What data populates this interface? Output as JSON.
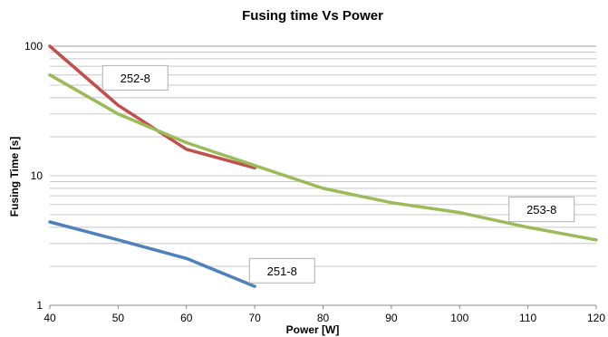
{
  "chart_data": {
    "type": "line",
    "title": "Fusing time Vs Power",
    "xlabel": "Power [W]",
    "ylabel": "Fusing Time [s]",
    "xlim": [
      40,
      120
    ],
    "ylim": [
      1,
      100
    ],
    "y_scale": "log",
    "x_ticks": [
      40,
      50,
      60,
      70,
      80,
      90,
      100,
      110,
      120
    ],
    "y_ticks": [
      1,
      10,
      100
    ],
    "grid": "horizontal",
    "legend": "none",
    "series": [
      {
        "name": "252-8",
        "color": "#c0504d",
        "x": [
          40,
          50,
          60,
          70
        ],
        "y": [
          100,
          35,
          16,
          11.5
        ]
      },
      {
        "name": "253-8",
        "color": "#9bbb59",
        "x": [
          40,
          50,
          60,
          70,
          80,
          90,
          100,
          110,
          120
        ],
        "y": [
          60,
          30,
          18,
          12,
          8,
          6.2,
          5.2,
          4,
          3.2
        ]
      },
      {
        "name": "251-8",
        "color": "#4f81bd",
        "x": [
          40,
          50,
          60,
          70
        ],
        "y": [
          4.4,
          3.2,
          2.3,
          1.4
        ]
      }
    ]
  }
}
